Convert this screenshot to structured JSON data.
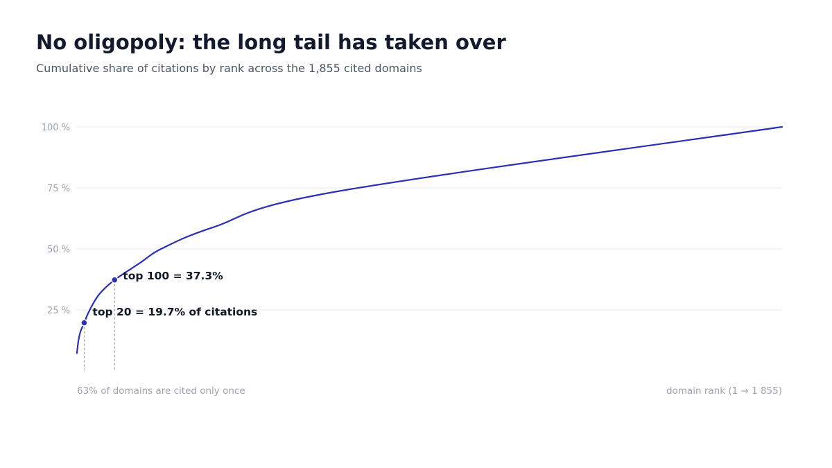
{
  "title": "No oligopoly: the long tail has taken over",
  "subtitle": "Cumulative share of citations by rank across the 1,855 cited domains",
  "colors": {
    "line": "#2a2fb5",
    "grid": "#e5e7eb",
    "guide": "#9ca3af",
    "title": "#141a2e"
  },
  "chart_data": {
    "type": "line",
    "title": "No oligopoly: the long tail has taken over",
    "subtitle": "Cumulative share of citations by rank across the 1,855 cited domains",
    "xlabel": "domain rank (1 → 1 855)",
    "ylabel": "",
    "xlim": [
      1,
      1855
    ],
    "ylim": [
      0,
      100
    ],
    "grid": true,
    "y_ticks": [
      {
        "value": 25,
        "label": "25 %"
      },
      {
        "value": 50,
        "label": "50 %"
      },
      {
        "value": 75,
        "label": "75 %"
      },
      {
        "value": 100,
        "label": "100 %"
      }
    ],
    "series": [
      {
        "x": [
          1,
          5,
          10,
          20,
          30,
          45,
          60,
          80,
          100,
          130,
          170,
          225,
          360,
          680,
          1855
        ],
        "values": [
          7.3,
          12.5,
          16.0,
          19.7,
          23.5,
          28.0,
          31.5,
          34.7,
          37.3,
          40.5,
          44.6,
          50.2,
          58.9,
          73.4,
          100.0
        ]
      }
    ],
    "annotations": [
      {
        "x": 20,
        "y": 19.7,
        "text": "top 20 = 19.7% of citations"
      },
      {
        "x": 100,
        "y": 37.3,
        "text": "top 100 = 37.3%"
      }
    ],
    "footnote": "63% of domains are cited only once"
  }
}
